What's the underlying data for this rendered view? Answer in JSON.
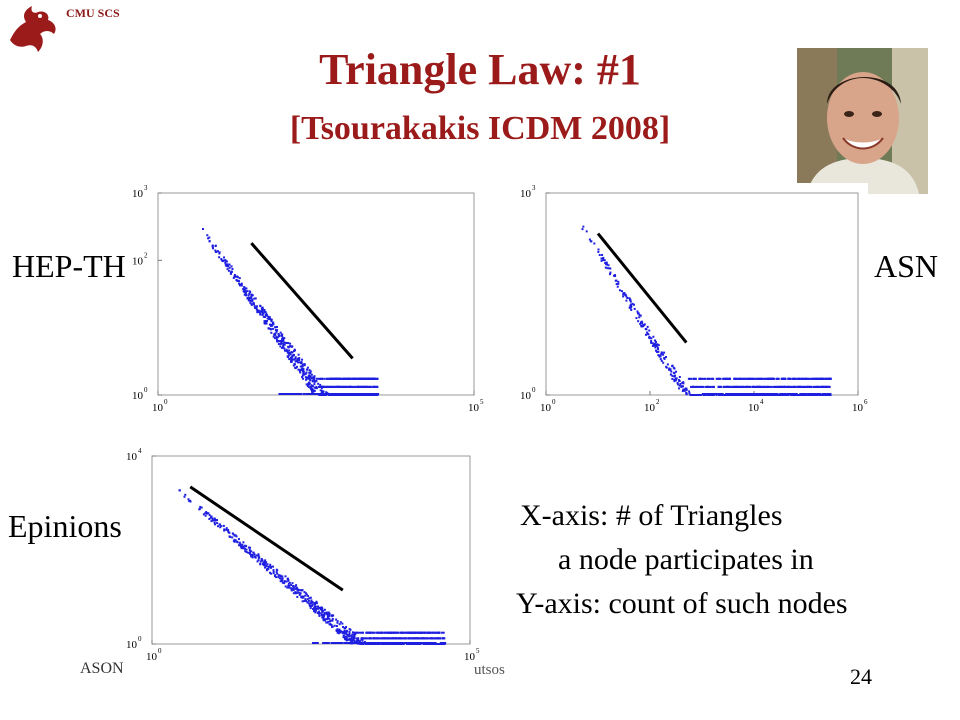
{
  "header": {
    "org": "CMU SCS"
  },
  "title": "Triangle Law: #1",
  "subtitle": "[Tsourakakis ICDM 2008]",
  "photo": {
    "icon": "portrait-photo"
  },
  "labels": {
    "hep": "HEP-TH",
    "asn": "ASN",
    "epinions": "Epinions"
  },
  "notes": {
    "line1": "X-axis: # of Triangles",
    "line2": "a node participates in",
    "line3": "Y-axis: count of such nodes"
  },
  "footer": {
    "left": "ASON",
    "right": "utsos",
    "page": "24"
  },
  "colors": {
    "title": "#9b1b1b",
    "points": "#1f1fe0",
    "fit_line": "#000000"
  },
  "chart_data": [
    {
      "type": "scatter",
      "name": "HEP-TH",
      "xscale": "log",
      "yscale": "log",
      "xlim": [
        1,
        100000
      ],
      "ylim": [
        1,
        1000
      ],
      "xticks": [
        "10",
        "10"
      ],
      "xtick_exp": [
        "0",
        "5"
      ],
      "yticks": [
        "10",
        "10",
        "10"
      ],
      "ytick_exp": [
        "0",
        "2",
        "3"
      ],
      "fit_line": {
        "x": [
          30,
          1200
        ],
        "y": [
          180,
          3.5
        ]
      },
      "shape": {
        "x_start": 5,
        "x_end": 3000,
        "y_start": 280,
        "slope": -1.3
      }
    },
    {
      "type": "scatter",
      "name": "ASN",
      "xscale": "log",
      "yscale": "log",
      "xlim": [
        1,
        1000000
      ],
      "ylim": [
        1,
        1000
      ],
      "xticks": [
        "10",
        "10",
        "10",
        "10"
      ],
      "xtick_exp": [
        "0",
        "2",
        "4",
        "6"
      ],
      "yticks": [
        "10",
        "10"
      ],
      "ytick_exp": [
        "0",
        "3"
      ],
      "fit_line": {
        "x": [
          10,
          500
        ],
        "y": [
          250,
          6
        ]
      },
      "shape": {
        "x_start": 5,
        "x_end": 300000,
        "y_start": 320,
        "slope": -1.25
      }
    },
    {
      "type": "scatter",
      "name": "Epinions",
      "xscale": "log",
      "yscale": "log",
      "xlim": [
        1,
        100000
      ],
      "ylim": [
        1,
        10000
      ],
      "xticks": [
        "10",
        "10"
      ],
      "xtick_exp": [
        "0",
        "5"
      ],
      "yticks": [
        "10",
        "10"
      ],
      "ytick_exp": [
        "0",
        "4"
      ],
      "fit_line": {
        "x": [
          4,
          1000
        ],
        "y": [
          2200,
          14
        ]
      },
      "shape": {
        "x_start": 2,
        "x_end": 40000,
        "y_start": 2500,
        "slope": -1.15
      }
    }
  ]
}
